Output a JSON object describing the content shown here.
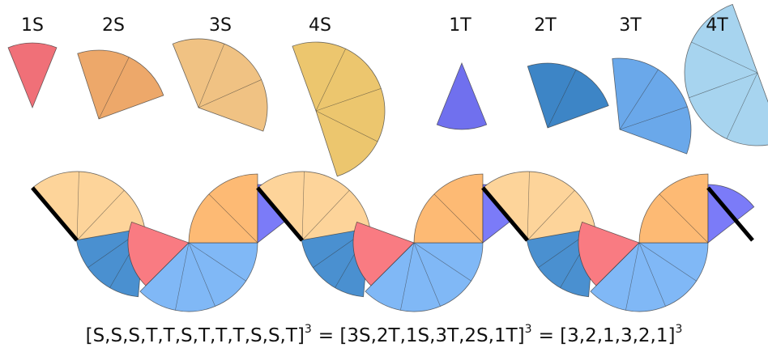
{
  "labels": [
    "1S",
    "2S",
    "3S",
    "4S",
    "1T",
    "2T",
    "3T",
    "4T"
  ],
  "formula": [
    "[S,S,S,T,T,S,T,T,T,S,S,T]",
    "3",
    "= [3S,2T,1S,3T,2S,1T]",
    "3",
    "= [3,2,1,3,2,1]",
    "3"
  ]
}
